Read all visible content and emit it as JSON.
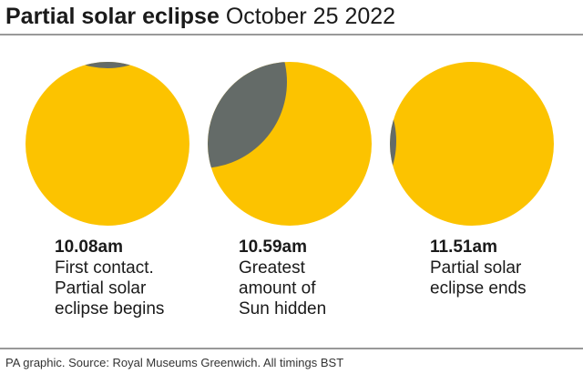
{
  "header": {
    "title_bold": "Partial solar eclipse",
    "title_regular": "October 25 2022"
  },
  "panels": [
    {
      "time": "10.08am",
      "lines": [
        "First contact.",
        "Partial solar",
        "eclipse begins"
      ]
    },
    {
      "time": "10.59am",
      "lines": [
        "Greatest",
        "amount of",
        "Sun hidden"
      ]
    },
    {
      "time": "11.51am",
      "lines": [
        "Partial solar",
        "eclipse ends"
      ]
    }
  ],
  "footer": {
    "source": "PA graphic. Source: Royal Museums Greenwich. All timings BST"
  }
}
